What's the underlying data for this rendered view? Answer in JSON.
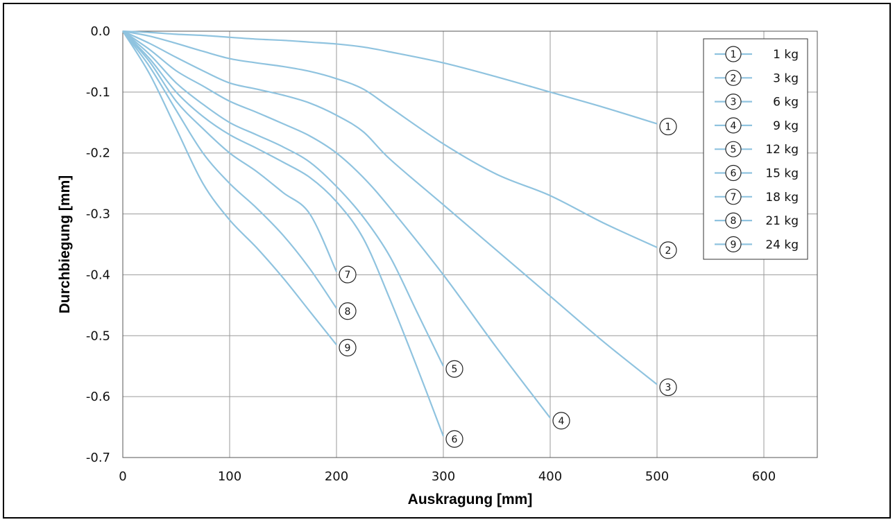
{
  "chart_data": {
    "type": "line",
    "xlabel": "Auskragung [mm]",
    "ylabel": "Durchbiegung [mm]",
    "xlim": [
      0,
      650
    ],
    "ylim": [
      -0.7,
      0.0
    ],
    "x_ticks": [
      "0",
      "100",
      "200",
      "300",
      "400",
      "500",
      "600"
    ],
    "y_ticks": [
      "0.0",
      "-0.1",
      "-0.2",
      "-0.3",
      "-0.4",
      "-0.5",
      "-0.6",
      "-0.7"
    ],
    "grid": true,
    "legend_position": "top-right",
    "line_color": "#8fc3df",
    "series": [
      {
        "name": "1 kg",
        "marker": "1",
        "x": [
          0,
          25,
          50,
          75,
          100,
          125,
          150,
          175,
          200,
          225,
          250,
          300,
          350,
          400,
          450,
          500
        ],
        "y": [
          0,
          -0.002,
          -0.005,
          -0.007,
          -0.01,
          -0.013,
          -0.015,
          -0.018,
          -0.021,
          -0.026,
          -0.034,
          -0.052,
          -0.075,
          -0.1,
          -0.125,
          -0.152
        ]
      },
      {
        "name": "3 kg",
        "marker": "2",
        "x": [
          0,
          25,
          50,
          75,
          100,
          125,
          150,
          175,
          200,
          225,
          250,
          300,
          350,
          400,
          450,
          500
        ],
        "y": [
          0,
          -0.008,
          -0.02,
          -0.033,
          -0.045,
          -0.052,
          -0.058,
          -0.066,
          -0.078,
          -0.095,
          -0.125,
          -0.185,
          -0.235,
          -0.27,
          -0.315,
          -0.355
        ]
      },
      {
        "name": "6 kg",
        "marker": "3",
        "x": [
          0,
          25,
          50,
          75,
          100,
          125,
          150,
          175,
          200,
          225,
          250,
          300,
          350,
          400,
          450,
          500
        ],
        "y": [
          0,
          -0.02,
          -0.043,
          -0.065,
          -0.085,
          -0.095,
          -0.105,
          -0.118,
          -0.138,
          -0.165,
          -0.21,
          -0.285,
          -0.36,
          -0.435,
          -0.51,
          -0.58
        ]
      },
      {
        "name": "9 kg",
        "marker": "4",
        "x": [
          0,
          25,
          50,
          75,
          100,
          125,
          150,
          175,
          200,
          225,
          250,
          300,
          350,
          400
        ],
        "y": [
          0,
          -0.03,
          -0.065,
          -0.09,
          -0.115,
          -0.133,
          -0.152,
          -0.172,
          -0.2,
          -0.24,
          -0.29,
          -0.4,
          -0.52,
          -0.635
        ]
      },
      {
        "name": "12 kg",
        "marker": "5",
        "x": [
          0,
          25,
          50,
          75,
          100,
          125,
          150,
          175,
          200,
          225,
          250,
          275,
          300
        ],
        "y": [
          0,
          -0.038,
          -0.085,
          -0.12,
          -0.15,
          -0.17,
          -0.19,
          -0.215,
          -0.255,
          -0.305,
          -0.37,
          -0.46,
          -0.55
        ]
      },
      {
        "name": "15 kg",
        "marker": "6",
        "x": [
          0,
          25,
          50,
          75,
          100,
          125,
          150,
          175,
          200,
          225,
          250,
          275,
          300
        ],
        "y": [
          0,
          -0.045,
          -0.1,
          -0.14,
          -0.17,
          -0.192,
          -0.215,
          -0.24,
          -0.28,
          -0.34,
          -0.44,
          -0.55,
          -0.665
        ]
      },
      {
        "name": "18 kg",
        "marker": "7",
        "x": [
          0,
          25,
          50,
          75,
          100,
          125,
          150,
          175,
          200
        ],
        "y": [
          0,
          -0.05,
          -0.115,
          -0.16,
          -0.2,
          -0.23,
          -0.265,
          -0.3,
          -0.395
        ]
      },
      {
        "name": "21 kg",
        "marker": "8",
        "x": [
          0,
          25,
          50,
          75,
          100,
          125,
          150,
          175,
          200
        ],
        "y": [
          0,
          -0.058,
          -0.13,
          -0.2,
          -0.25,
          -0.29,
          -0.335,
          -0.39,
          -0.455
        ]
      },
      {
        "name": "24 kg",
        "marker": "9",
        "x": [
          0,
          25,
          50,
          75,
          100,
          125,
          150,
          175,
          200
        ],
        "y": [
          0,
          -0.07,
          -0.16,
          -0.25,
          -0.31,
          -0.355,
          -0.405,
          -0.46,
          -0.515
        ]
      }
    ]
  }
}
